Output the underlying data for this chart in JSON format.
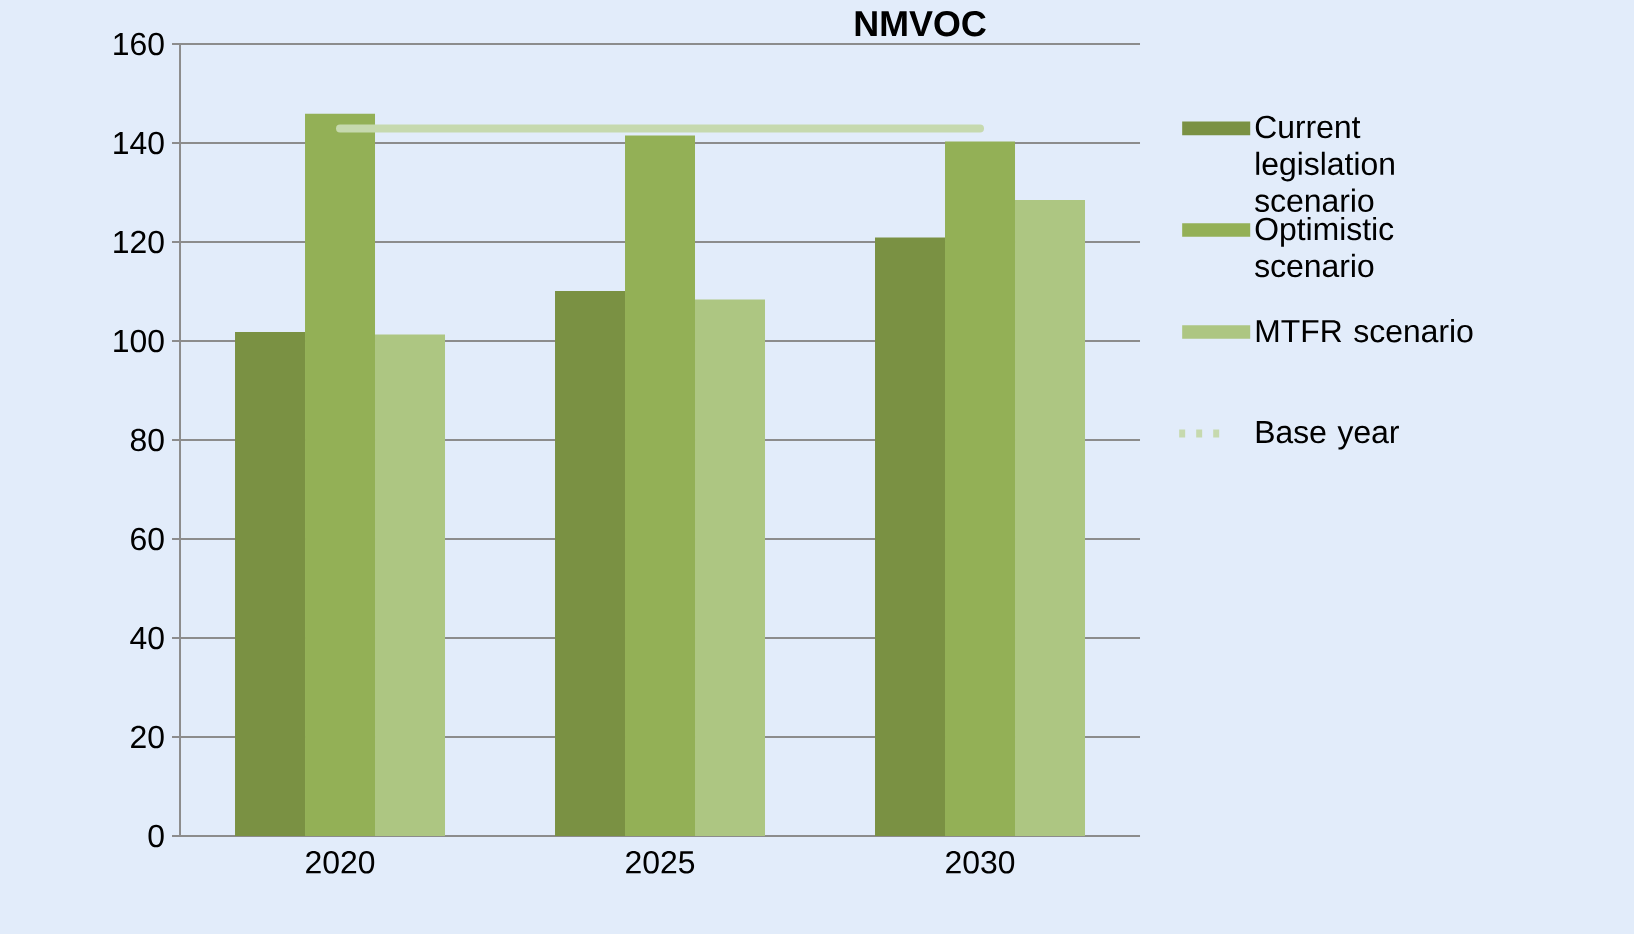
{
  "chart_data": {
    "type": "bar",
    "title": "NMVOC",
    "categories": [
      "2020",
      "2025",
      "2030"
    ],
    "series": [
      {
        "name": "Current legislation scenario",
        "color": "#7a9143",
        "values": [
          101.8,
          110.1,
          120.9
        ]
      },
      {
        "name": "Optimistic scenario",
        "color": "#93b056",
        "values": [
          145.9,
          141.5,
          140.3
        ]
      },
      {
        "name": "MTFR scenario",
        "color": "#adc682",
        "values": [
          101.3,
          108.4,
          128.5
        ]
      },
      {
        "name": "Base year",
        "type": "line",
        "color": "#c6d9ae",
        "values": [
          142.9,
          142.9,
          142.9
        ]
      }
    ],
    "ylim": [
      0,
      160
    ],
    "yticks": [
      0,
      20,
      40,
      60,
      80,
      100,
      120,
      140,
      160
    ],
    "grid": "y",
    "legend": "right",
    "marker": "none",
    "line_style": "solid"
  }
}
